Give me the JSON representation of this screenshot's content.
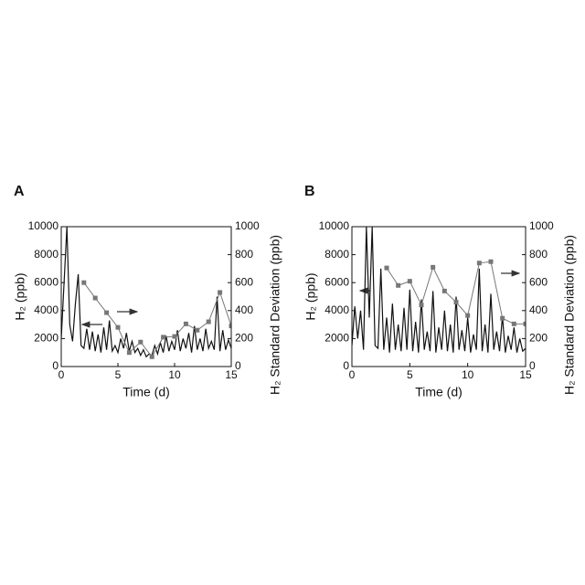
{
  "chart_data": [
    {
      "type": "line",
      "panel_label": "A",
      "x_label": "Time (d)",
      "y_label": "H₂ (ppb)",
      "y2_label": "H₂ Standard Deviation (ppb)",
      "xlim": [
        0,
        15
      ],
      "xticks": [
        0,
        5,
        10,
        15
      ],
      "ylim": [
        0,
        10000
      ],
      "yticks": [
        0,
        2000,
        4000,
        6000,
        8000,
        10000
      ],
      "y2lim": [
        0,
        1000
      ],
      "y2ticks": [
        0,
        200,
        400,
        600,
        800,
        1000
      ],
      "series": [
        {
          "color": "#111111",
          "x": [
            0,
            0.25,
            0.5,
            0.75,
            1,
            1.25,
            1.5,
            1.75,
            2,
            2.25,
            2.5,
            2.75,
            3,
            3.25,
            3.5,
            3.75,
            4,
            4.25,
            4.5,
            4.75,
            5,
            5.25,
            5.5,
            5.75,
            6,
            6.25,
            6.5,
            6.75,
            7,
            7.25,
            7.5,
            7.75,
            8,
            8.25,
            8.5,
            8.75,
            9,
            9.25,
            9.5,
            9.75,
            10,
            10.25,
            10.5,
            10.75,
            11,
            11.25,
            11.5,
            11.75,
            12,
            12.25,
            12.5,
            12.75,
            13,
            13.25,
            13.5,
            13.75,
            14,
            14.25,
            14.5,
            14.75,
            15
          ],
          "values": [
            2000,
            6000,
            10000,
            3000,
            1800,
            4500,
            6600,
            1500,
            1300,
            2700,
            1200,
            2500,
            1100,
            2300,
            1000,
            2800,
            1200,
            3300,
            1100,
            1500,
            1000,
            2000,
            1300,
            2400,
            1100,
            1800,
            1000,
            1300,
            800,
            1200,
            700,
            900,
            800,
            1500,
            900,
            1700,
            1000,
            2200,
            1100,
            1800,
            1200,
            2600,
            1100,
            2000,
            1300,
            2400,
            1000,
            2900,
            1200,
            2000,
            1100,
            2700,
            1300,
            1800,
            1200,
            5000,
            1100,
            2600,
            1200,
            1900,
            1300
          ]
        },
        {
          "color": "#777777",
          "axis": "y2",
          "markers": "square",
          "x": [
            2,
            3,
            4,
            5,
            6,
            7,
            8,
            9,
            10,
            11,
            12,
            13,
            14,
            15
          ],
          "values": [
            600,
            490,
            385,
            280,
            100,
            175,
            70,
            210,
            215,
            305,
            260,
            320,
            530,
            290
          ]
        }
      ]
    },
    {
      "type": "line",
      "panel_label": "B",
      "x_label": "Time (d)",
      "y_label": "H₂ (ppb)",
      "y2_label": "H₂ Standard Deviation (ppb)",
      "xlim": [
        0,
        15
      ],
      "xticks": [
        0,
        5,
        10,
        15
      ],
      "ylim": [
        0,
        10000
      ],
      "yticks": [
        0,
        2000,
        4000,
        6000,
        8000,
        10000
      ],
      "y2lim": [
        0,
        1000
      ],
      "y2ticks": [
        0,
        200,
        400,
        600,
        800,
        1000
      ],
      "series": [
        {
          "color": "#111111",
          "x": [
            0,
            0.25,
            0.5,
            0.75,
            1,
            1.25,
            1.5,
            1.75,
            2,
            2.25,
            2.5,
            2.75,
            3,
            3.25,
            3.5,
            3.75,
            4,
            4.25,
            4.5,
            4.75,
            5,
            5.25,
            5.5,
            5.75,
            6,
            6.25,
            6.5,
            6.75,
            7,
            7.25,
            7.5,
            7.75,
            8,
            8.25,
            8.5,
            8.75,
            9,
            9.25,
            9.5,
            9.75,
            10,
            10.25,
            10.5,
            10.75,
            11,
            11.25,
            11.5,
            11.75,
            12,
            12.25,
            12.5,
            12.75,
            13,
            13.25,
            13.5,
            13.75,
            14,
            14.25,
            14.5,
            14.75,
            15
          ],
          "values": [
            1500,
            4300,
            2000,
            4000,
            1200,
            10000,
            3500,
            10000,
            1500,
            1300,
            7000,
            1200,
            3500,
            1000,
            4500,
            1200,
            3000,
            1100,
            4200,
            1200,
            5500,
            1100,
            3200,
            1000,
            4800,
            1200,
            2500,
            1100,
            5400,
            1000,
            2800,
            1200,
            4000,
            1100,
            3000,
            1000,
            5000,
            1200,
            2600,
            1100,
            3500,
            1000,
            2300,
            1200,
            7000,
            1100,
            3000,
            1000,
            5200,
            1200,
            2500,
            1100,
            3600,
            1000,
            2200,
            1200,
            2800,
            1000,
            2000,
            1100,
            1300
          ]
        },
        {
          "color": "#777777",
          "axis": "y2",
          "markers": "square",
          "x": [
            3,
            4,
            5,
            6,
            7,
            8,
            9,
            10,
            11,
            12,
            13,
            14,
            15
          ],
          "values": [
            705,
            580,
            610,
            440,
            710,
            540,
            460,
            365,
            740,
            750,
            345,
            305,
            305
          ]
        }
      ]
    }
  ]
}
